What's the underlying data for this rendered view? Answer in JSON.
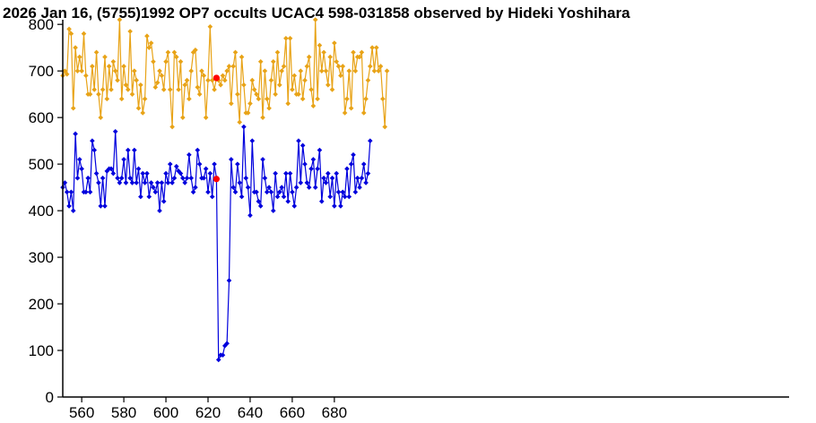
{
  "chart_data": {
    "type": "line",
    "title": "2026 Jan 16, (5755)1992 OP7 occults UCAC4 598-031858 observed by Hideki Yoshihara",
    "xlabel": "",
    "ylabel": "",
    "xlim": [
      551,
      896
    ],
    "ylim": [
      0,
      810
    ],
    "xticks": [
      560,
      580,
      600,
      620,
      640,
      660,
      680
    ],
    "yticks": [
      0,
      100,
      200,
      300,
      400,
      500,
      600,
      700,
      800
    ],
    "grid": false,
    "x_start": 551,
    "series": [
      {
        "color": "#e8a317",
        "values": [
          690,
          700,
          693,
          790,
          780,
          620,
          750,
          700,
          730,
          700,
          780,
          690,
          650,
          650,
          710,
          660,
          740,
          650,
          600,
          660,
          730,
          640,
          710,
          660,
          720,
          700,
          680,
          810,
          640,
          710,
          670,
          660,
          785,
          650,
          700,
          680,
          620,
          670,
          610,
          640,
          775,
          750,
          760,
          720,
          665,
          675,
          700,
          690,
          660,
          720,
          740,
          660,
          580,
          740,
          730,
          660,
          720,
          600,
          670,
          680,
          640,
          700,
          740,
          745,
          665,
          650,
          700,
          690,
          600,
          680,
          795,
          680,
          660,
          685,
          680,
          670,
          690,
          680,
          700,
          710,
          630,
          710,
          740,
          650,
          590,
          730,
          670,
          610,
          610,
          630,
          680,
          660,
          650,
          640,
          720,
          600,
          700,
          640,
          620,
          680,
          720,
          650,
          740,
          670,
          700,
          710,
          770,
          630,
          770,
          660,
          690,
          650,
          650,
          700,
          640,
          680,
          710,
          730,
          660,
          625,
          810,
          640,
          755,
          700,
          740,
          700,
          670,
          730,
          660,
          760,
          720,
          710,
          690,
          710,
          610,
          640,
          700,
          620,
          740,
          700,
          730,
          730,
          740,
          610,
          640,
          680,
          710,
          750,
          700,
          750,
          700,
          710,
          640,
          580,
          700
        ]
      },
      {
        "color": "#0000dd",
        "values": [
          450,
          460,
          440,
          410,
          440,
          400,
          565,
          470,
          510,
          490,
          440,
          440,
          470,
          440,
          550,
          530,
          480,
          460,
          410,
          470,
          410,
          485,
          490,
          490,
          480,
          570,
          470,
          460,
          470,
          510,
          460,
          530,
          470,
          460,
          530,
          460,
          490,
          430,
          480,
          460,
          480,
          430,
          460,
          450,
          440,
          460,
          400,
          460,
          420,
          480,
          460,
          500,
          460,
          470,
          495,
          485,
          480,
          470,
          460,
          470,
          520,
          470,
          440,
          450,
          530,
          500,
          470,
          470,
          490,
          440,
          480,
          430,
          500,
          470,
          80,
          90,
          90,
          110,
          115,
          250,
          510,
          450,
          440,
          500,
          460,
          430,
          580,
          470,
          450,
          390,
          550,
          440,
          440,
          420,
          410,
          510,
          470,
          440,
          450,
          440,
          400,
          480,
          430,
          440,
          450,
          430,
          480,
          420,
          480,
          440,
          410,
          450,
          550,
          460,
          540,
          500,
          460,
          450,
          490,
          510,
          450,
          490,
          530,
          420,
          470,
          460,
          480,
          430,
          470,
          410,
          480,
          440,
          410,
          440,
          430,
          490,
          430,
          500,
          520,
          440,
          470,
          450,
          470,
          500,
          460,
          480,
          550
        ],
        "markers": [
          [
            624,
            468
          ]
        ]
      }
    ],
    "highlight_points": [
      {
        "x": 624,
        "y": 685,
        "color": "#ff0000"
      },
      {
        "x": 624,
        "y": 468,
        "color": "#ff0000"
      }
    ]
  }
}
